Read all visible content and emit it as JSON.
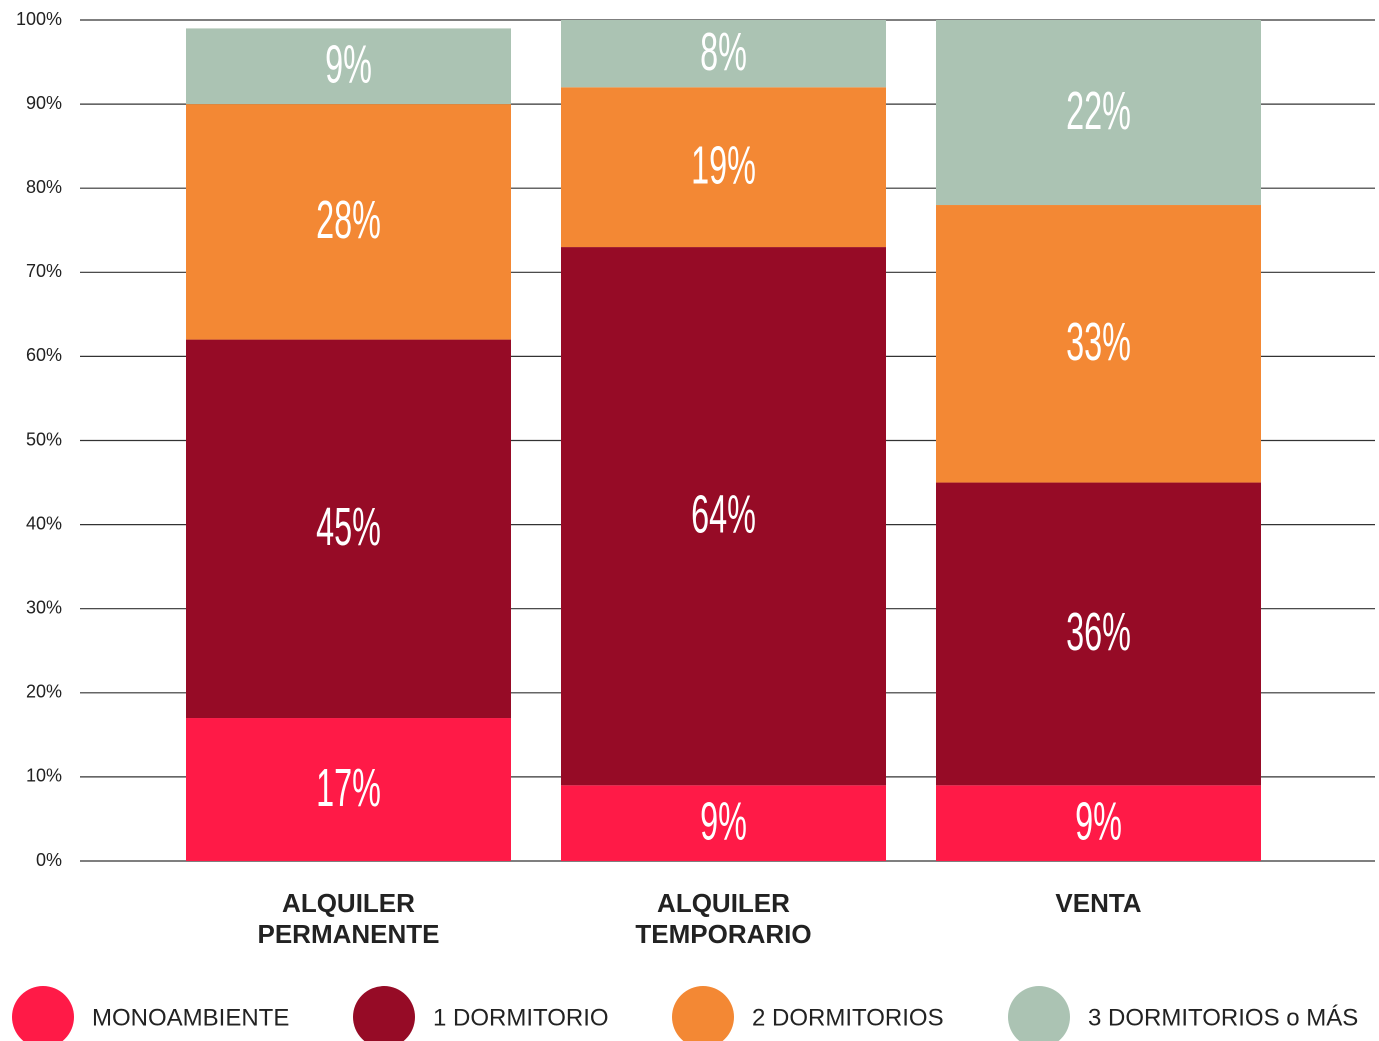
{
  "chart_data": {
    "type": "stacked_bar",
    "categories": [
      "ALQUILER PERMANENTE",
      "ALQUILER TEMPORARIO",
      "VENTA"
    ],
    "series": [
      {
        "name": "MONOAMBIENTE",
        "color": "#ff1a47",
        "values": [
          17,
          9,
          9
        ],
        "value_labels": [
          "17%",
          "9%",
          "9%"
        ]
      },
      {
        "name": "1 DORMITORIO",
        "color": "#960b26",
        "values": [
          45,
          64,
          36
        ],
        "value_labels": [
          "45%",
          "64%",
          "36%"
        ]
      },
      {
        "name": "2 DORMITORIOS",
        "color": "#f38834",
        "values": [
          28,
          19,
          33
        ],
        "value_labels": [
          "28%",
          "19%",
          "33%"
        ]
      },
      {
        "name": "3 DORMITORIOS o MÁS",
        "color": "#abc3b3",
        "values": [
          9,
          8,
          22
        ],
        "value_labels": [
          "9%",
          "8%",
          "22%"
        ]
      }
    ],
    "ylim": [
      0,
      100
    ],
    "yticks": [
      {
        "value": 0,
        "label": "0%"
      },
      {
        "value": 10,
        "label": "10%"
      },
      {
        "value": 20,
        "label": "20%"
      },
      {
        "value": 30,
        "label": "30%"
      },
      {
        "value": 40,
        "label": "40%"
      },
      {
        "value": 50,
        "label": "50%"
      },
      {
        "value": 60,
        "label": "60%"
      },
      {
        "value": 70,
        "label": "70%"
      },
      {
        "value": 80,
        "label": "80%"
      },
      {
        "value": 90,
        "label": "90%"
      },
      {
        "value": 100,
        "label": "100%"
      }
    ],
    "grid": true
  }
}
